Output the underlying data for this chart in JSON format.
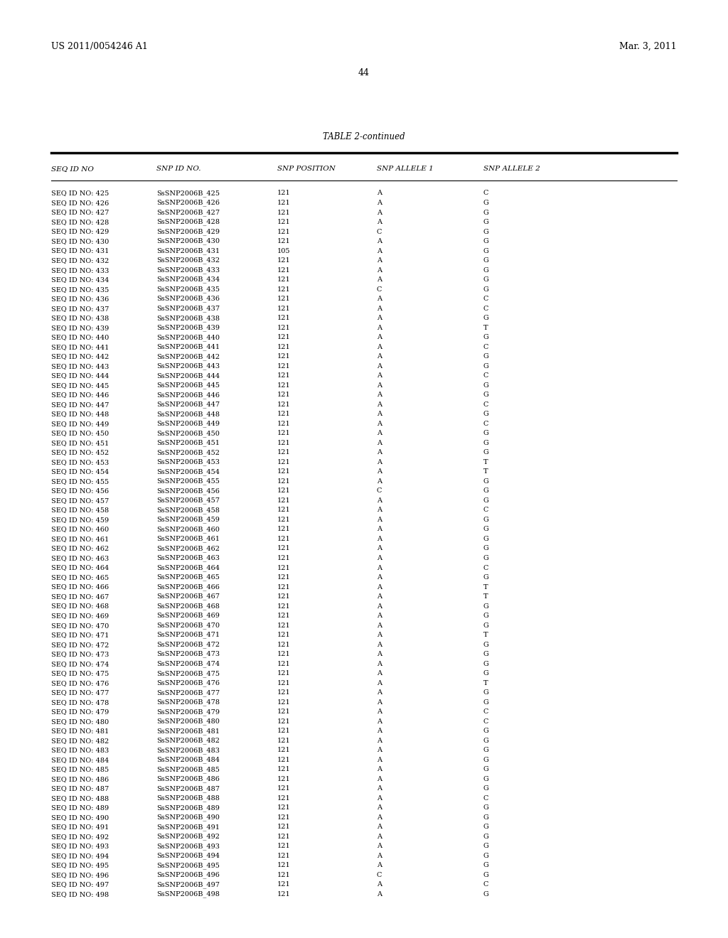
{
  "header_left": "US 2011/0054246 A1",
  "header_right": "Mar. 3, 2011",
  "page_number": "44",
  "table_title": "TABLE 2-continued",
  "columns": [
    "SEQ ID NO",
    "SNP ID NO.",
    "SNP POSITION",
    "SNP ALLELE 1",
    "SNP ALLELE 2"
  ],
  "rows": [
    [
      "SEQ ID NO: 425",
      "SsSNP2006B_425",
      "121",
      "A",
      "C"
    ],
    [
      "SEQ ID NO: 426",
      "SsSNP2006B_426",
      "121",
      "A",
      "G"
    ],
    [
      "SEQ ID NO: 427",
      "SsSNP2006B_427",
      "121",
      "A",
      "G"
    ],
    [
      "SEQ ID NO: 428",
      "SsSNP2006B_428",
      "121",
      "A",
      "G"
    ],
    [
      "SEQ ID NO: 429",
      "SsSNP2006B_429",
      "121",
      "C",
      "G"
    ],
    [
      "SEQ ID NO: 430",
      "SsSNP2006B_430",
      "121",
      "A",
      "G"
    ],
    [
      "SEQ ID NO: 431",
      "SsSNP2006B_431",
      "105",
      "A",
      "G"
    ],
    [
      "SEQ ID NO: 432",
      "SsSNP2006B_432",
      "121",
      "A",
      "G"
    ],
    [
      "SEQ ID NO: 433",
      "SsSNP2006B_433",
      "121",
      "A",
      "G"
    ],
    [
      "SEQ ID NO: 434",
      "SsSNP2006B_434",
      "121",
      "A",
      "G"
    ],
    [
      "SEQ ID NO: 435",
      "SsSNP2006B_435",
      "121",
      "C",
      "G"
    ],
    [
      "SEQ ID NO: 436",
      "SsSNP2006B_436",
      "121",
      "A",
      "C"
    ],
    [
      "SEQ ID NO: 437",
      "SsSNP2006B_437",
      "121",
      "A",
      "C"
    ],
    [
      "SEQ ID NO: 438",
      "SsSNP2006B_438",
      "121",
      "A",
      "G"
    ],
    [
      "SEQ ID NO: 439",
      "SsSNP2006B_439",
      "121",
      "A",
      "T"
    ],
    [
      "SEQ ID NO: 440",
      "SsSNP2006B_440",
      "121",
      "A",
      "G"
    ],
    [
      "SEQ ID NO: 441",
      "SsSNP2006B_441",
      "121",
      "A",
      "C"
    ],
    [
      "SEQ ID NO: 442",
      "SsSNP2006B_442",
      "121",
      "A",
      "G"
    ],
    [
      "SEQ ID NO: 443",
      "SsSNP2006B_443",
      "121",
      "A",
      "G"
    ],
    [
      "SEQ ID NO: 444",
      "SsSNP2006B_444",
      "121",
      "A",
      "C"
    ],
    [
      "SEQ ID NO: 445",
      "SsSNP2006B_445",
      "121",
      "A",
      "G"
    ],
    [
      "SEQ ID NO: 446",
      "SsSNP2006B_446",
      "121",
      "A",
      "G"
    ],
    [
      "SEQ ID NO: 447",
      "SsSNP2006B_447",
      "121",
      "A",
      "C"
    ],
    [
      "SEQ ID NO: 448",
      "SsSNP2006B_448",
      "121",
      "A",
      "G"
    ],
    [
      "SEQ ID NO: 449",
      "SsSNP2006B_449",
      "121",
      "A",
      "C"
    ],
    [
      "SEQ ID NO: 450",
      "SsSNP2006B_450",
      "121",
      "A",
      "G"
    ],
    [
      "SEQ ID NO: 451",
      "SsSNP2006B_451",
      "121",
      "A",
      "G"
    ],
    [
      "SEQ ID NO: 452",
      "SsSNP2006B_452",
      "121",
      "A",
      "G"
    ],
    [
      "SEQ ID NO: 453",
      "SsSNP2006B_453",
      "121",
      "A",
      "T"
    ],
    [
      "SEQ ID NO: 454",
      "SsSNP2006B_454",
      "121",
      "A",
      "T"
    ],
    [
      "SEQ ID NO: 455",
      "SsSNP2006B_455",
      "121",
      "A",
      "G"
    ],
    [
      "SEQ ID NO: 456",
      "SsSNP2006B_456",
      "121",
      "C",
      "G"
    ],
    [
      "SEQ ID NO: 457",
      "SsSNP2006B_457",
      "121",
      "A",
      "G"
    ],
    [
      "SEQ ID NO: 458",
      "SsSNP2006B_458",
      "121",
      "A",
      "C"
    ],
    [
      "SEQ ID NO: 459",
      "SsSNP2006B_459",
      "121",
      "A",
      "G"
    ],
    [
      "SEQ ID NO: 460",
      "SsSNP2006B_460",
      "121",
      "A",
      "G"
    ],
    [
      "SEQ ID NO: 461",
      "SsSNP2006B_461",
      "121",
      "A",
      "G"
    ],
    [
      "SEQ ID NO: 462",
      "SsSNP2006B_462",
      "121",
      "A",
      "G"
    ],
    [
      "SEQ ID NO: 463",
      "SsSNP2006B_463",
      "121",
      "A",
      "G"
    ],
    [
      "SEQ ID NO: 464",
      "SsSNP2006B_464",
      "121",
      "A",
      "C"
    ],
    [
      "SEQ ID NO: 465",
      "SsSNP2006B_465",
      "121",
      "A",
      "G"
    ],
    [
      "SEQ ID NO: 466",
      "SsSNP2006B_466",
      "121",
      "A",
      "T"
    ],
    [
      "SEQ ID NO: 467",
      "SsSNP2006B_467",
      "121",
      "A",
      "T"
    ],
    [
      "SEQ ID NO: 468",
      "SsSNP2006B_468",
      "121",
      "A",
      "G"
    ],
    [
      "SEQ ID NO: 469",
      "SsSNP2006B_469",
      "121",
      "A",
      "G"
    ],
    [
      "SEQ ID NO: 470",
      "SsSNP2006B_470",
      "121",
      "A",
      "G"
    ],
    [
      "SEQ ID NO: 471",
      "SsSNP2006B_471",
      "121",
      "A",
      "T"
    ],
    [
      "SEQ ID NO: 472",
      "SsSNP2006B_472",
      "121",
      "A",
      "G"
    ],
    [
      "SEQ ID NO: 473",
      "SsSNP2006B_473",
      "121",
      "A",
      "G"
    ],
    [
      "SEQ ID NO: 474",
      "SsSNP2006B_474",
      "121",
      "A",
      "G"
    ],
    [
      "SEQ ID NO: 475",
      "SsSNP2006B_475",
      "121",
      "A",
      "G"
    ],
    [
      "SEQ ID NO: 476",
      "SsSNP2006B_476",
      "121",
      "A",
      "T"
    ],
    [
      "SEQ ID NO: 477",
      "SsSNP2006B_477",
      "121",
      "A",
      "G"
    ],
    [
      "SEQ ID NO: 478",
      "SsSNP2006B_478",
      "121",
      "A",
      "G"
    ],
    [
      "SEQ ID NO: 479",
      "SsSNP2006B_479",
      "121",
      "A",
      "C"
    ],
    [
      "SEQ ID NO: 480",
      "SsSNP2006B_480",
      "121",
      "A",
      "C"
    ],
    [
      "SEQ ID NO: 481",
      "SsSNP2006B_481",
      "121",
      "A",
      "G"
    ],
    [
      "SEQ ID NO: 482",
      "SsSNP2006B_482",
      "121",
      "A",
      "G"
    ],
    [
      "SEQ ID NO: 483",
      "SsSNP2006B_483",
      "121",
      "A",
      "G"
    ],
    [
      "SEQ ID NO: 484",
      "SsSNP2006B_484",
      "121",
      "A",
      "G"
    ],
    [
      "SEQ ID NO: 485",
      "SsSNP2006B_485",
      "121",
      "A",
      "G"
    ],
    [
      "SEQ ID NO: 486",
      "SsSNP2006B_486",
      "121",
      "A",
      "G"
    ],
    [
      "SEQ ID NO: 487",
      "SsSNP2006B_487",
      "121",
      "A",
      "G"
    ],
    [
      "SEQ ID NO: 488",
      "SsSNP2006B_488",
      "121",
      "A",
      "C"
    ],
    [
      "SEQ ID NO: 489",
      "SsSNP2006B_489",
      "121",
      "A",
      "G"
    ],
    [
      "SEQ ID NO: 490",
      "SsSNP2006B_490",
      "121",
      "A",
      "G"
    ],
    [
      "SEQ ID NO: 491",
      "SsSNP2006B_491",
      "121",
      "A",
      "G"
    ],
    [
      "SEQ ID NO: 492",
      "SsSNP2006B_492",
      "121",
      "A",
      "G"
    ],
    [
      "SEQ ID NO: 493",
      "SsSNP2006B_493",
      "121",
      "A",
      "G"
    ],
    [
      "SEQ ID NO: 494",
      "SsSNP2006B_494",
      "121",
      "A",
      "G"
    ],
    [
      "SEQ ID NO: 495",
      "SsSNP2006B_495",
      "121",
      "A",
      "G"
    ],
    [
      "SEQ ID NO: 496",
      "SsSNP2006B_496",
      "121",
      "C",
      "G"
    ],
    [
      "SEQ ID NO: 497",
      "SsSNP2006B_497",
      "121",
      "A",
      "C"
    ],
    [
      "SEQ ID NO: 498",
      "SsSNP2006B_498",
      "121",
      "A",
      "G"
    ]
  ],
  "background_color": "#ffffff",
  "text_color": "#000000",
  "font_size": 7.0,
  "header_font_size": 7.5,
  "title_font_size": 8.5,
  "page_font_size": 9.0
}
